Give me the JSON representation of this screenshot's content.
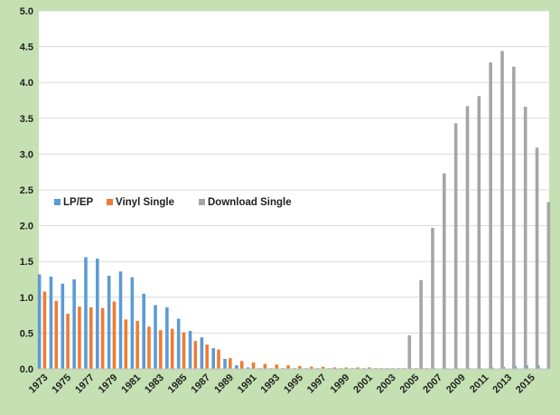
{
  "colors": {
    "frame_background": "#c5e0b3",
    "plot_background": "#ffffff",
    "gridline": "#d9d9d9",
    "axis_line": "#bfbfbf"
  },
  "chart_data": {
    "type": "bar",
    "title": "",
    "xlabel": "",
    "ylabel": "",
    "ylim": [
      0,
      5.0
    ],
    "yticks": [
      "0.0",
      "0.5",
      "1.0",
      "1.5",
      "2.0",
      "2.5",
      "3.0",
      "3.5",
      "4.0",
      "4.5",
      "5.0"
    ],
    "grid": true,
    "legend_position": "center-left",
    "categories": [
      1973,
      1974,
      1975,
      1976,
      1977,
      1978,
      1979,
      1980,
      1981,
      1982,
      1983,
      1984,
      1985,
      1986,
      1987,
      1988,
      1989,
      1990,
      1991,
      1992,
      1993,
      1994,
      1995,
      1996,
      1997,
      1998,
      1999,
      2000,
      2001,
      2002,
      2003,
      2004,
      2005,
      2006,
      2007,
      2008,
      2009,
      2010,
      2011,
      2012,
      2013,
      2014,
      2015,
      2016
    ],
    "xtick_labels": [
      "1973",
      "1975",
      "1977",
      "1979",
      "1981",
      "1983",
      "1985",
      "1987",
      "1989",
      "1991",
      "1993",
      "1995",
      "1997",
      "1999",
      "2001",
      "2003",
      "2005",
      "2007",
      "2009",
      "2011",
      "2013",
      "2015"
    ],
    "series": [
      {
        "name": "LP/EP",
        "color": "#5b9bd5",
        "values": [
          1.32,
          1.29,
          1.19,
          1.25,
          1.56,
          1.54,
          1.3,
          1.36,
          1.28,
          1.05,
          0.89,
          0.86,
          0.7,
          0.53,
          0.44,
          0.29,
          0.14,
          0.05,
          0.02,
          0.01,
          0.01,
          0.01,
          0.01,
          0.01,
          0.01,
          0.01,
          0.01,
          0.01,
          0.01,
          0.01,
          0.01,
          0.01,
          0.01,
          0.01,
          0.01,
          0.01,
          0.01,
          0.01,
          0.01,
          0.02,
          0.03,
          0.04,
          0.05,
          0.05
        ]
      },
      {
        "name": "Vinyl Single",
        "color": "#ed7d31",
        "values": [
          1.08,
          0.95,
          0.77,
          0.87,
          0.86,
          0.85,
          0.94,
          0.69,
          0.67,
          0.59,
          0.54,
          0.56,
          0.51,
          0.39,
          0.34,
          0.27,
          0.15,
          0.11,
          0.09,
          0.07,
          0.06,
          0.05,
          0.04,
          0.03,
          0.03,
          0.02,
          0.02,
          0.02,
          0.02,
          0.01,
          0.01,
          0.01,
          0.01,
          0.01,
          0.0,
          0.0,
          0.0,
          0.0,
          0.0,
          0.0,
          0.0,
          0.0,
          0.0,
          0.0
        ]
      },
      {
        "name": "Download Single",
        "color": "#a5a5a5",
        "values": [
          0,
          0,
          0,
          0,
          0,
          0,
          0,
          0,
          0,
          0,
          0,
          0,
          0,
          0,
          0,
          0,
          0,
          0,
          0,
          0,
          0,
          0,
          0,
          0,
          0,
          0,
          0,
          0,
          0,
          0,
          0,
          0.47,
          1.24,
          1.97,
          2.73,
          3.43,
          3.67,
          3.81,
          4.28,
          4.44,
          4.22,
          3.66,
          3.09,
          2.33
        ]
      }
    ]
  }
}
